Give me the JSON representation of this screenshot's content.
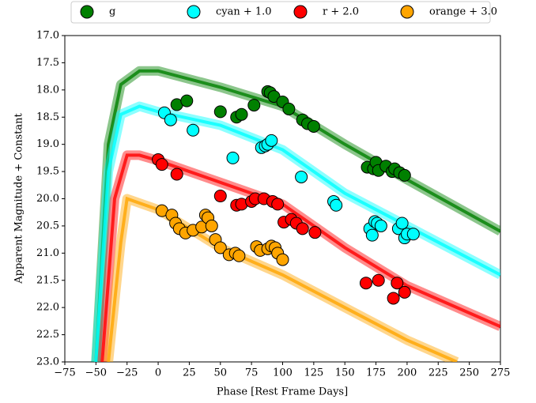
{
  "chart_data": {
    "type": "scatter",
    "x_label": "Phase [Rest Frame Days]",
    "y_label": "Apparent Magnitude + Constant",
    "xlim": [
      -75,
      275
    ],
    "ylim": [
      23.0,
      17.0
    ],
    "y_inverted": true,
    "xticks": [
      {
        "value": -75,
        "label": "−75"
      },
      {
        "value": -50,
        "label": "−50"
      },
      {
        "value": -25,
        "label": "−25"
      },
      0,
      25,
      50,
      75,
      100,
      125,
      150,
      175,
      200,
      225,
      250,
      275
    ],
    "yticks": [
      {
        "value": 17,
        "label": "17.0"
      },
      17.5,
      {
        "value": 18,
        "label": "18.0"
      },
      18.5,
      {
        "value": 19,
        "label": "19.0"
      },
      19.5,
      {
        "value": 20,
        "label": "20.0"
      },
      20.5,
      {
        "value": 21,
        "label": "21.0"
      },
      21.5,
      {
        "value": 22,
        "label": "22.0"
      },
      22.5,
      {
        "value": 23,
        "label": "23.0"
      }
    ],
    "series": [
      {
        "name": "g",
        "color": "#008000",
        "x": [
          15,
          23,
          50,
          63,
          67,
          77,
          88,
          90,
          93,
          100,
          105,
          116,
          120,
          125,
          168,
          173,
          175,
          177,
          183,
          188,
          190,
          194,
          198
        ],
        "values": [
          18.27,
          18.2,
          18.4,
          18.5,
          18.45,
          18.28,
          18.03,
          18.05,
          18.12,
          18.22,
          18.35,
          18.55,
          18.62,
          18.67,
          19.42,
          19.45,
          19.33,
          19.48,
          19.4,
          19.5,
          19.45,
          19.52,
          19.57
        ],
        "model_x": [
          -50,
          -40,
          -30,
          -15,
          0,
          50,
          100,
          150,
          200,
          275
        ],
        "model_values": [
          23.0,
          19.0,
          17.9,
          17.65,
          17.65,
          17.95,
          18.3,
          19.0,
          19.65,
          20.6
        ]
      },
      {
        "name": "cyan + 1.0",
        "color": "#00ffff",
        "x": [
          5,
          10,
          28,
          60,
          83,
          86,
          88,
          91,
          115,
          141,
          143,
          170,
          172,
          174,
          176,
          179,
          193,
          196,
          198,
          200,
          205
        ],
        "values": [
          18.42,
          18.55,
          18.74,
          19.25,
          19.06,
          19.03,
          19.0,
          18.93,
          19.6,
          20.05,
          20.12,
          20.55,
          20.67,
          20.42,
          20.45,
          20.5,
          20.55,
          20.45,
          20.72,
          20.65,
          20.65
        ],
        "model_x": [
          -50,
          -40,
          -30,
          -15,
          0,
          50,
          100,
          150,
          200,
          275
        ],
        "model_values": [
          23.0,
          19.5,
          18.45,
          18.3,
          18.4,
          18.65,
          19.1,
          19.9,
          20.5,
          21.4
        ]
      },
      {
        "name": "r + 2.0",
        "color": "#ff0000",
        "x": [
          0,
          3,
          15,
          50,
          63,
          67,
          75,
          78,
          85,
          92,
          96,
          101,
          107,
          111,
          116,
          126,
          167,
          177,
          189,
          192,
          198
        ],
        "values": [
          19.28,
          19.37,
          19.55,
          19.95,
          20.12,
          20.1,
          20.05,
          20.0,
          20.0,
          20.05,
          20.1,
          20.43,
          20.38,
          20.45,
          20.55,
          20.62,
          21.55,
          21.5,
          21.83,
          21.55,
          21.72
        ],
        "model_x": [
          -45,
          -35,
          -25,
          -15,
          0,
          50,
          100,
          150,
          200,
          275
        ],
        "model_values": [
          23.0,
          20.0,
          19.2,
          19.2,
          19.3,
          19.7,
          20.1,
          20.9,
          21.6,
          22.35
        ]
      },
      {
        "name": "orange + 3.0",
        "color": "#ffa500",
        "x": [
          3,
          11,
          14,
          17,
          22,
          28,
          35,
          38,
          40,
          43,
          46,
          50,
          57,
          62,
          65,
          79,
          82,
          88,
          91,
          94,
          96,
          100
        ],
        "values": [
          20.22,
          20.3,
          20.45,
          20.55,
          20.63,
          20.58,
          20.52,
          20.3,
          20.35,
          20.5,
          20.75,
          20.9,
          21.03,
          21.0,
          21.05,
          20.88,
          20.95,
          20.92,
          20.87,
          20.9,
          21.0,
          21.12
        ],
        "model_x": [
          -40,
          -30,
          -25,
          0,
          50,
          100,
          150,
          200,
          240
        ],
        "model_values": [
          23.0,
          20.8,
          20.0,
          20.2,
          20.9,
          21.4,
          22.0,
          22.6,
          23.0
        ]
      }
    ]
  }
}
